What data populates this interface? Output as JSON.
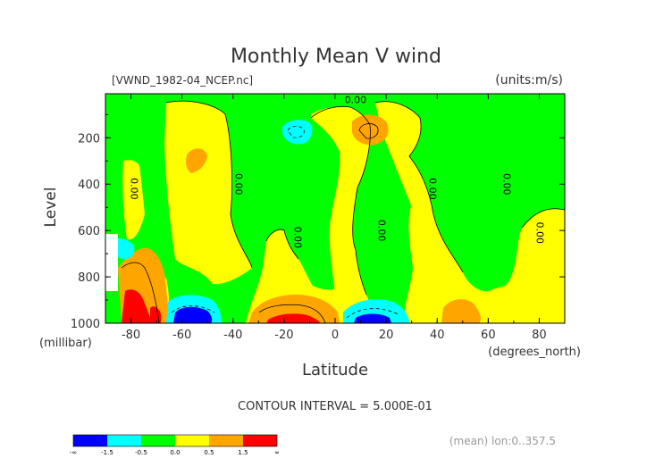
{
  "chart_data": {
    "type": "contour",
    "title": "Monthly Mean V wind",
    "dataset_label": "[VWND_1982-04_NCEP.nc]",
    "units_label": "(units:m/s)",
    "xlabel": "Latitude",
    "x_units": "(degrees_north)",
    "ylabel": "Level",
    "y_units": "(millibar)",
    "xlim": [
      -90,
      90
    ],
    "ylim": [
      1000,
      10
    ],
    "x_ticks": [
      -80,
      -60,
      -40,
      -20,
      0,
      20,
      40,
      60,
      80
    ],
    "y_ticks": [
      200,
      400,
      600,
      800,
      1000
    ],
    "contour_interval_text": "CONTOUR INTERVAL = 5.000E-01",
    "footer_note": "(mean) lon:0..357.5",
    "contour_labels": [
      {
        "text": "0.00",
        "x": 8,
        "y": 50
      },
      {
        "text": "0.00",
        "x": -80,
        "y": 420
      },
      {
        "text": "0.00",
        "x": -39,
        "y": 400
      },
      {
        "text": "0.00",
        "x": -16,
        "y": 630
      },
      {
        "text": "0.00",
        "x": 17,
        "y": 600
      },
      {
        "text": "0.00",
        "x": 37,
        "y": 420
      },
      {
        "text": "0.00",
        "x": 66,
        "y": 400
      },
      {
        "text": "0.00",
        "x": 79,
        "y": 610
      }
    ],
    "colorbar": {
      "colors": [
        "#0000ff",
        "#00ffff",
        "#00ff00",
        "#ffff00",
        "#ffa500",
        "#ff0000"
      ],
      "labels": [
        "-∞",
        "-1.5",
        "-0.5",
        "0.0",
        "0.5",
        "1.5",
        "∞"
      ]
    },
    "colors": {
      "strong_negative": "#0000ff",
      "weak_negative": "#00ffff",
      "near_zero_negative": "#00ff00",
      "near_zero_positive": "#ffff00",
      "weak_positive": "#ffa500",
      "strong_positive": "#ff0000"
    }
  }
}
